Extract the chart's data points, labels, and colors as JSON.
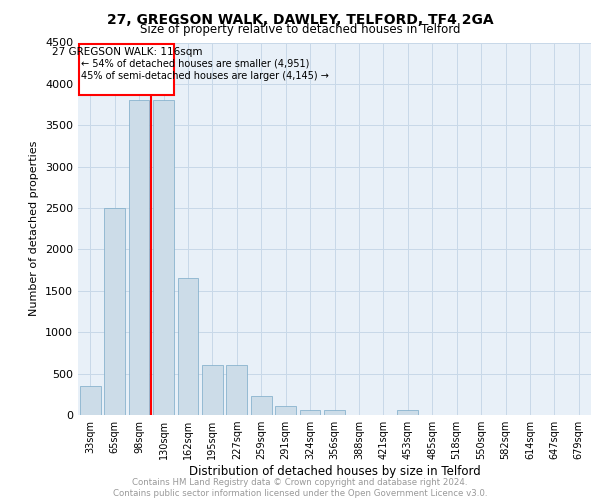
{
  "title1": "27, GREGSON WALK, DAWLEY, TELFORD, TF4 2GA",
  "title2": "Size of property relative to detached houses in Telford",
  "xlabel": "Distribution of detached houses by size in Telford",
  "ylabel": "Number of detached properties",
  "categories": [
    "33sqm",
    "65sqm",
    "98sqm",
    "130sqm",
    "162sqm",
    "195sqm",
    "227sqm",
    "259sqm",
    "291sqm",
    "324sqm",
    "356sqm",
    "388sqm",
    "421sqm",
    "453sqm",
    "485sqm",
    "518sqm",
    "550sqm",
    "582sqm",
    "614sqm",
    "647sqm",
    "679sqm"
  ],
  "values": [
    350,
    2500,
    3800,
    3800,
    1650,
    600,
    600,
    230,
    110,
    60,
    60,
    0,
    0,
    60,
    0,
    0,
    0,
    0,
    0,
    0,
    0
  ],
  "bar_color": "#ccdce8",
  "bar_edge_color": "#7aaac8",
  "grid_color": "#c8d8e8",
  "background_color": "#e8f0f8",
  "annotation_title": "27 GREGSON WALK: 116sqm",
  "annotation_line1": "← 54% of detached houses are smaller (4,951)",
  "annotation_line2": "45% of semi-detached houses are larger (4,145) →",
  "ylim": [
    0,
    4500
  ],
  "yticks": [
    0,
    500,
    1000,
    1500,
    2000,
    2500,
    3000,
    3500,
    4000,
    4500
  ],
  "footer1": "Contains HM Land Registry data © Crown copyright and database right 2024.",
  "footer2": "Contains public sector information licensed under the Open Government Licence v3.0."
}
